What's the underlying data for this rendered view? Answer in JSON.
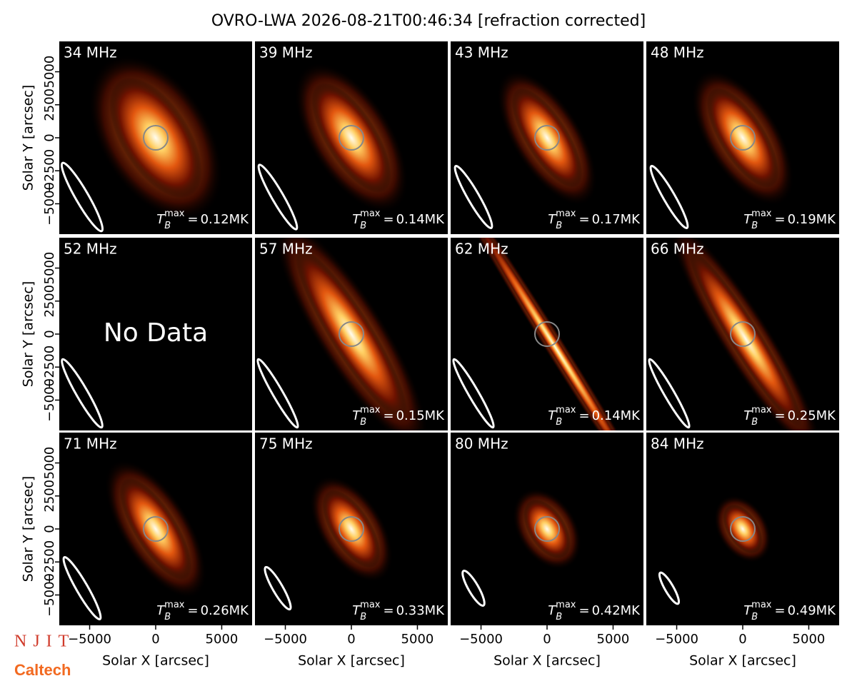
{
  "title": "OVRO-LWA 2026-08-21T00:46:34 [refraction corrected]",
  "panels": [
    {
      "freq": "34 MHz",
      "tmax": "0.12MK"
    },
    {
      "freq": "39 MHz",
      "tmax": "0.14MK"
    },
    {
      "freq": "43 MHz",
      "tmax": "0.17MK"
    },
    {
      "freq": "48 MHz",
      "tmax": "0.19MK"
    },
    {
      "freq": "52 MHz",
      "note": "No Data"
    },
    {
      "freq": "57 MHz",
      "tmax": "0.15MK"
    },
    {
      "freq": "62 MHz",
      "tmax": "0.14MK"
    },
    {
      "freq": "66 MHz",
      "tmax": "0.25MK"
    },
    {
      "freq": "71 MHz",
      "tmax": "0.26MK"
    },
    {
      "freq": "75 MHz",
      "tmax": "0.33MK"
    },
    {
      "freq": "80 MHz",
      "tmax": "0.42MK"
    },
    {
      "freq": "84 MHz",
      "tmax": "0.49MK"
    }
  ],
  "tmax_symbol": {
    "base": "T",
    "sub": "B",
    "sup": "max",
    "eq": "="
  },
  "x_axis": {
    "label": "Solar X [arcsec]",
    "lim": [
      -7300,
      7300
    ],
    "ticks": [
      {
        "value": -5000,
        "label": "−5000"
      },
      0,
      5000
    ]
  },
  "y_axis": {
    "label": "Solar Y [arcsec]",
    "lim": [
      -7300,
      7300
    ],
    "ticks": [
      {
        "value": -5000,
        "label": "−5000"
      },
      {
        "value": -2500,
        "label": "−2500"
      },
      0,
      2500,
      5000
    ]
  },
  "logos": {
    "njit": "NJIT",
    "caltech": "Caltech"
  }
}
